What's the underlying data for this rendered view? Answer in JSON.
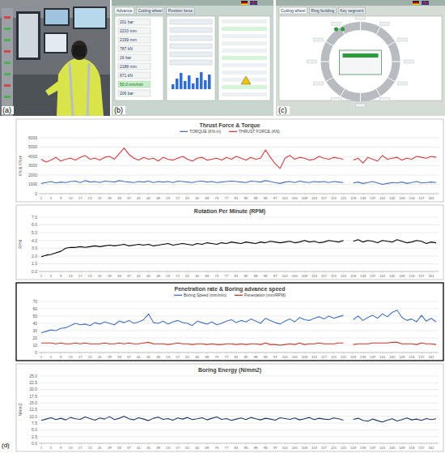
{
  "photo": {
    "label": "(a)"
  },
  "screens": [
    {
      "label": "(b)",
      "tabs": [
        "Advance",
        "Cutting wheel",
        "Position force"
      ],
      "readings": [
        "201 bar",
        "2210 mm",
        "2199 mm",
        "787 kN",
        "16 bar",
        "2188 mm",
        "671 kN",
        "50.0 mm/min",
        "206 bar"
      ]
    },
    {
      "label": "(c)",
      "tabs": [
        "Cutting wheel",
        "Ring building",
        "Key segment"
      ],
      "readings": []
    }
  ],
  "figure_label": "(d)",
  "chart_data": [
    {
      "type": "line",
      "title": "Thrust Force & Torque",
      "y_label": "KN & KN-m",
      "grid": true,
      "legend": "top",
      "x": [
        1,
        3,
        5,
        7,
        9,
        11,
        13,
        15,
        17,
        19,
        21,
        23,
        25,
        27,
        29,
        31,
        33,
        35,
        37,
        39,
        41,
        43,
        45,
        47,
        49,
        51,
        53,
        55,
        57,
        59,
        61,
        63,
        65,
        67,
        69,
        71,
        73,
        75,
        77,
        79,
        81,
        83,
        85,
        87,
        89,
        91,
        93,
        95,
        97,
        99,
        101,
        103,
        105,
        107,
        109,
        111,
        113,
        115,
        117,
        119,
        121,
        123,
        125,
        127,
        129,
        131,
        133,
        135,
        137,
        139,
        141,
        143,
        145,
        147,
        149,
        151,
        153,
        155,
        157,
        159,
        161,
        163
      ],
      "xlim": [
        0,
        164
      ],
      "xticks": [
        1,
        5,
        9,
        13,
        17,
        21,
        25,
        29,
        33,
        37,
        41,
        45,
        49,
        53,
        57,
        61,
        65,
        69,
        73,
        77,
        81,
        85,
        89,
        93,
        97,
        101,
        105,
        109,
        113,
        117,
        121,
        125,
        129,
        133,
        137,
        141,
        145,
        149,
        153,
        157,
        161
      ],
      "ylim": [
        0,
        6000
      ],
      "yticks": [
        0,
        1000,
        2000,
        3000,
        4000,
        5000,
        6000
      ],
      "series": [
        {
          "name": "TORQUE (KN-m)",
          "color": "#4472c4",
          "values": [
            1100,
            1200,
            1300,
            1150,
            1250,
            1200,
            1300,
            1350,
            1200,
            1400,
            1250,
            1300,
            1200,
            1350,
            1300,
            1250,
            1400,
            1300,
            1250,
            1200,
            1300,
            1250,
            1350,
            1200,
            1300,
            1250,
            1300,
            1200,
            1350,
            1300,
            1250,
            1200,
            1300,
            1350,
            1250,
            1300,
            1200,
            1250,
            1300,
            1350,
            1300,
            1250,
            1200,
            1350,
            1300,
            1250,
            1400,
            1300,
            1200,
            1100,
            1250,
            1300,
            1200,
            1350,
            1250,
            1200,
            1300,
            1250,
            1300,
            1200,
            1300,
            1250,
            1200,
            null,
            1150,
            1250,
            1100,
            1200,
            1300,
            1150,
            1000,
            1100,
            1200,
            1150,
            1250,
            1100,
            1200,
            1300,
            1150,
            1200,
            1250,
            1200
          ]
        },
        {
          "name": "THRUST FORCE (KN)",
          "color": "#e0393e",
          "values": [
            3700,
            3400,
            3600,
            3900,
            3500,
            3700,
            3800,
            3600,
            3900,
            4100,
            3700,
            3800,
            3600,
            3900,
            4000,
            3700,
            4300,
            4900,
            4200,
            3800,
            3600,
            3900,
            3700,
            3800,
            3500,
            3900,
            3700,
            3600,
            3800,
            4000,
            3700,
            3500,
            3800,
            3900,
            3600,
            3700,
            3800,
            3600,
            3900,
            3700,
            4000,
            3800,
            3600,
            3900,
            3700,
            3800,
            4700,
            3900,
            3200,
            2700,
            3800,
            4100,
            3700,
            3900,
            3800,
            3600,
            3700,
            4000,
            3800,
            3700,
            3900,
            3800,
            3700,
            null,
            3600,
            3800,
            3300,
            3900,
            3700,
            3500,
            4100,
            3700,
            3800,
            3900,
            3600,
            3800,
            3700,
            4000,
            3900,
            3800,
            4000,
            3900
          ]
        }
      ]
    },
    {
      "type": "line",
      "title": "Rotation Per Minute (RPM)",
      "y_label": "RPM",
      "grid": true,
      "color": "#000000",
      "x": [
        1,
        3,
        5,
        7,
        9,
        11,
        13,
        15,
        17,
        19,
        21,
        23,
        25,
        27,
        29,
        31,
        33,
        35,
        37,
        39,
        41,
        43,
        45,
        47,
        49,
        51,
        53,
        55,
        57,
        59,
        61,
        63,
        65,
        67,
        69,
        71,
        73,
        75,
        77,
        79,
        81,
        83,
        85,
        87,
        89,
        91,
        93,
        95,
        97,
        99,
        101,
        103,
        105,
        107,
        109,
        111,
        113,
        115,
        117,
        119,
        121,
        123,
        125,
        127,
        129,
        131,
        133,
        135,
        137,
        139,
        141,
        143,
        145,
        147,
        149,
        151,
        153,
        155,
        157,
        159,
        161,
        163
      ],
      "xlim": [
        0,
        164
      ],
      "xticks": [
        1,
        5,
        9,
        13,
        17,
        21,
        25,
        29,
        33,
        37,
        41,
        45,
        49,
        53,
        57,
        61,
        65,
        69,
        73,
        77,
        81,
        85,
        89,
        93,
        97,
        101,
        105,
        109,
        113,
        117,
        121,
        125,
        129,
        133,
        137,
        141,
        145,
        149,
        153,
        157,
        161
      ],
      "ylim": [
        0,
        7
      ],
      "yticks": [
        {
          "value": 0,
          "label": "0.0"
        },
        {
          "value": 1,
          "label": "1.0"
        },
        {
          "value": 2,
          "label": "2.0"
        },
        {
          "value": 3,
          "label": "3.0"
        },
        {
          "value": 4,
          "label": "4.0"
        },
        {
          "value": 5,
          "label": "5.0"
        },
        {
          "value": 6,
          "label": "6.0"
        },
        {
          "value": 7,
          "label": "7.0"
        }
      ],
      "values": [
        1.9,
        2.1,
        2.2,
        2.4,
        2.6,
        3.0,
        3.1,
        3.1,
        3.2,
        3.1,
        3.2,
        3.3,
        3.2,
        3.3,
        3.4,
        3.3,
        3.4,
        3.5,
        3.3,
        3.4,
        3.5,
        3.4,
        3.5,
        3.3,
        3.4,
        3.5,
        3.6,
        3.4,
        3.5,
        3.6,
        3.5,
        3.4,
        3.6,
        3.5,
        3.7,
        3.6,
        3.5,
        3.7,
        3.6,
        3.8,
        3.7,
        3.6,
        3.8,
        3.7,
        3.6,
        3.8,
        3.7,
        3.9,
        3.8,
        3.7,
        3.8,
        3.9,
        3.7,
        3.8,
        4.0,
        3.8,
        3.9,
        3.7,
        3.8,
        4.0,
        3.9,
        3.8,
        4.0,
        null,
        3.9,
        4.1,
        3.8,
        4.0,
        3.9,
        3.7,
        4.0,
        3.9,
        3.8,
        4.1,
        3.9,
        3.7,
        3.8,
        4.0,
        3.9,
        3.6,
        3.8,
        3.7
      ]
    },
    {
      "type": "line",
      "title": "Penetration rate & Boring advance speed",
      "grid": true,
      "legend": "top",
      "x": [
        1,
        3,
        5,
        7,
        9,
        11,
        13,
        15,
        17,
        19,
        21,
        23,
        25,
        27,
        29,
        31,
        33,
        35,
        37,
        39,
        41,
        43,
        45,
        47,
        49,
        51,
        53,
        55,
        57,
        59,
        61,
        63,
        65,
        67,
        69,
        71,
        73,
        75,
        77,
        79,
        81,
        83,
        85,
        87,
        89,
        91,
        93,
        95,
        97,
        99,
        101,
        103,
        105,
        107,
        109,
        111,
        113,
        115,
        117,
        119,
        121,
        123,
        125,
        127,
        129,
        131,
        133,
        135,
        137,
        139,
        141,
        143,
        145,
        147,
        149,
        151,
        153,
        155,
        157,
        159,
        161,
        163
      ],
      "xlim": [
        0,
        164
      ],
      "xticks": [
        1,
        5,
        9,
        13,
        17,
        21,
        25,
        29,
        33,
        37,
        41,
        45,
        49,
        53,
        57,
        61,
        65,
        69,
        73,
        77,
        81,
        85,
        89,
        93,
        97,
        101,
        105,
        109,
        113,
        117,
        121,
        125,
        129,
        133,
        137,
        141,
        145,
        149,
        153,
        157,
        161
      ],
      "ylim": [
        0,
        70
      ],
      "yticks": [
        0,
        10,
        20,
        30,
        40,
        50,
        60,
        70
      ],
      "series": [
        {
          "name": "Boring Speed (mm/min)",
          "color": "#4472c4",
          "values": [
            27,
            29,
            31,
            30,
            33,
            34,
            37,
            40,
            38,
            39,
            37,
            41,
            39,
            42,
            40,
            38,
            43,
            41,
            44,
            40,
            42,
            45,
            53,
            41,
            40,
            43,
            39,
            42,
            44,
            41,
            40,
            37,
            43,
            41,
            39,
            42,
            38,
            40,
            43,
            45,
            41,
            44,
            42,
            46,
            43,
            40,
            47,
            44,
            41,
            39,
            43,
            46,
            42,
            48,
            45,
            44,
            47,
            49,
            46,
            50,
            47,
            49,
            51,
            null,
            45,
            50,
            44,
            48,
            51,
            47,
            53,
            49,
            55,
            58,
            48,
            44,
            46,
            42,
            51,
            43,
            47,
            42
          ]
        },
        {
          "name": "Penetration (mm/RPM)",
          "color": "#c0392b",
          "values": [
            13,
            13,
            13,
            12,
            13,
            12,
            12,
            13,
            12,
            13,
            12,
            12,
            12,
            13,
            12,
            12,
            13,
            12,
            13,
            12,
            12,
            13,
            14,
            12,
            12,
            12,
            11,
            12,
            13,
            12,
            12,
            11,
            12,
            12,
            11,
            12,
            11,
            11,
            12,
            12,
            11,
            12,
            11,
            12,
            12,
            11,
            13,
            11,
            11,
            10,
            11,
            12,
            11,
            13,
            11,
            12,
            12,
            13,
            12,
            12,
            12,
            13,
            13,
            null,
            11,
            12,
            12,
            12,
            13,
            13,
            13,
            13,
            14,
            14,
            12,
            12,
            12,
            11,
            13,
            12,
            12,
            11
          ]
        }
      ]
    },
    {
      "type": "line",
      "title": "Boring Energy (N/mm2)",
      "y_label": "N/mm2",
      "grid": true,
      "color": "#1f3864",
      "x": [
        1,
        3,
        5,
        7,
        9,
        11,
        13,
        15,
        17,
        19,
        21,
        23,
        25,
        27,
        29,
        31,
        33,
        35,
        37,
        39,
        41,
        43,
        45,
        47,
        49,
        51,
        53,
        55,
        57,
        59,
        61,
        63,
        65,
        67,
        69,
        71,
        73,
        75,
        77,
        79,
        81,
        83,
        85,
        87,
        89,
        91,
        93,
        95,
        97,
        99,
        101,
        103,
        105,
        107,
        109,
        111,
        113,
        115,
        117,
        119,
        121,
        123,
        125,
        127,
        129,
        131,
        133,
        135,
        137,
        139,
        141,
        143,
        145,
        147,
        149,
        151,
        153,
        155,
        157,
        159,
        161,
        163
      ],
      "xlim": [
        0,
        164
      ],
      "xticks": [
        1,
        5,
        9,
        13,
        17,
        21,
        25,
        29,
        33,
        37,
        41,
        45,
        49,
        53,
        57,
        61,
        65,
        69,
        73,
        77,
        81,
        85,
        89,
        93,
        97,
        101,
        105,
        109,
        113,
        117,
        121,
        125,
        129,
        133,
        137,
        141,
        145,
        149,
        153,
        157,
        161
      ],
      "ylim": [
        0,
        25
      ],
      "yticks": [
        {
          "value": 0,
          "label": "0.0"
        },
        2.5,
        {
          "value": 5,
          "label": "5.0"
        },
        7.5,
        {
          "value": 10,
          "label": "10.0"
        },
        12.5,
        {
          "value": 15,
          "label": "15.0"
        },
        17.5,
        {
          "value": 20,
          "label": "20.0"
        },
        22.5,
        {
          "value": 25,
          "label": "25.0"
        }
      ],
      "values": [
        8.5,
        9.0,
        9.5,
        8.8,
        9.3,
        8.7,
        9.6,
        9.1,
        8.9,
        9.8,
        9.2,
        8.6,
        9.4,
        9.0,
        9.9,
        8.8,
        9.3,
        10.0,
        9.1,
        8.7,
        9.5,
        9.0,
        8.4,
        9.3,
        9.7,
        8.9,
        9.2,
        8.6,
        9.4,
        9.0,
        9.6,
        8.8,
        9.1,
        9.5,
        8.7,
        9.3,
        9.8,
        8.9,
        9.2,
        8.5,
        9.0,
        9.4,
        8.8,
        9.6,
        9.1,
        8.7,
        9.3,
        9.0,
        8.6,
        9.5,
        9.2,
        8.9,
        9.4,
        8.7,
        9.1,
        9.6,
        8.8,
        9.3,
        9.0,
        8.8,
        9.4,
        9.1,
        8.6,
        null,
        8.9,
        9.3,
        8.5,
        8.2,
        9.0,
        8.4,
        7.9,
        8.6,
        9.1,
        8.3,
        8.8,
        9.4,
        8.7,
        9.0,
        8.5,
        9.2,
        8.8,
        9.1
      ]
    }
  ]
}
